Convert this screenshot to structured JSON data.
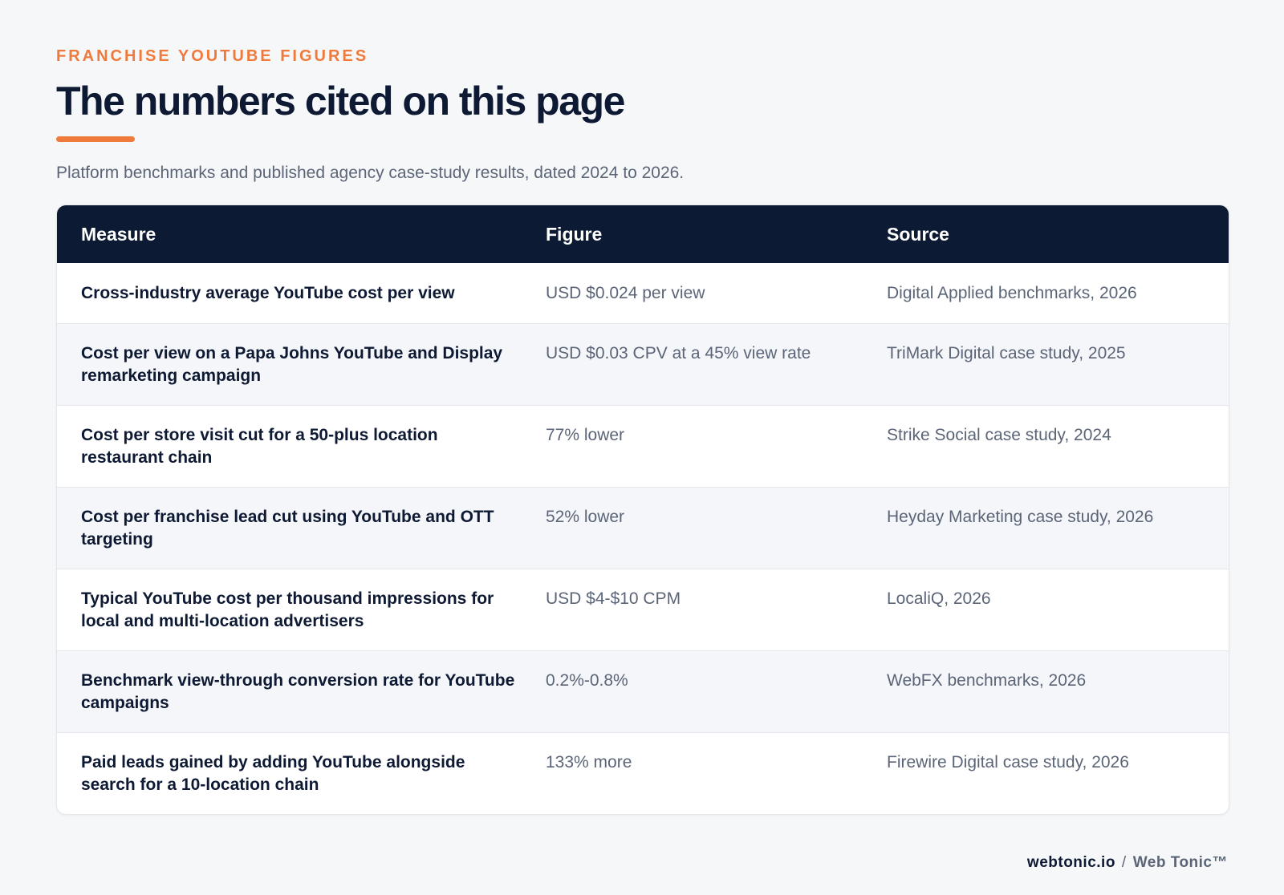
{
  "header": {
    "eyebrow": "FRANCHISE YOUTUBE FIGURES",
    "title": "The numbers cited on this page",
    "subtitle": "Platform benchmarks and published agency case-study results, dated 2024 to 2026."
  },
  "table": {
    "columns": [
      "Measure",
      "Figure",
      "Source"
    ],
    "rows": [
      {
        "measure": "Cross-industry average YouTube cost per view",
        "figure": "USD $0.024 per view",
        "source": "Digital Applied benchmarks, 2026"
      },
      {
        "measure": "Cost per view on a Papa Johns YouTube and Display remarketing campaign",
        "figure": "USD $0.03 CPV at a 45% view rate",
        "source": "TriMark Digital case study, 2025"
      },
      {
        "measure": "Cost per store visit cut for a 50-plus location restaurant chain",
        "figure": "77% lower",
        "source": "Strike Social case study, 2024"
      },
      {
        "measure": "Cost per franchise lead cut using YouTube and OTT targeting",
        "figure": "52% lower",
        "source": "Heyday Marketing case study, 2026"
      },
      {
        "measure": "Typical YouTube cost per thousand impressions for local and multi-location advertisers",
        "figure": "USD $4-$10 CPM",
        "source": "LocaliQ, 2026"
      },
      {
        "measure": "Benchmark view-through conversion rate for YouTube campaigns",
        "figure": "0.2%-0.8%",
        "source": "WebFX benchmarks, 2026"
      },
      {
        "measure": "Paid leads gained by adding YouTube alongside search for a 10-location chain",
        "figure": "133% more",
        "source": "Firewire Digital case study, 2026"
      }
    ]
  },
  "footer": {
    "domain": "webtonic.io",
    "separator": "/",
    "brand": "Web Tonic™"
  }
}
